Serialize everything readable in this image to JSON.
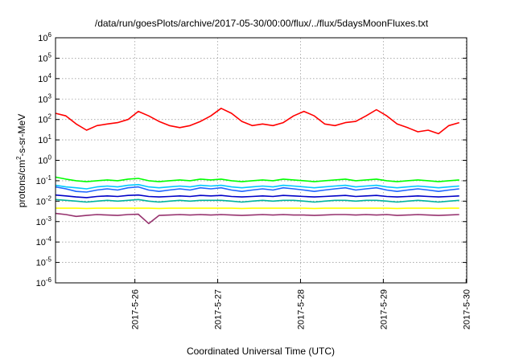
{
  "chart_data": {
    "type": "line",
    "title": "/data/run/goesPlots/archive/2017-05-30/00:00/flux/../flux/5daysMoonFluxes.txt",
    "xlabel": "Coordinated Universal Time (UTC)",
    "ylabel": "protons/cm2-s-sr-MeV",
    "ylabel_parts": {
      "before": "protons/cm",
      "sup": "2",
      "after": "-s-sr-MeV"
    },
    "y_scale": "log",
    "ylim": [
      1e-06,
      1000000.0
    ],
    "y_ticks": [
      {
        "base": "10",
        "exp": "-6"
      },
      {
        "base": "10",
        "exp": "-5"
      },
      {
        "base": "10",
        "exp": "-4"
      },
      {
        "base": "10",
        "exp": "-3"
      },
      {
        "base": "10",
        "exp": "-2"
      },
      {
        "base": "10",
        "exp": "-1"
      },
      {
        "base": "10",
        "exp": "0"
      },
      {
        "base": "10",
        "exp": "1"
      },
      {
        "base": "10",
        "exp": "2"
      },
      {
        "base": "10",
        "exp": "3"
      },
      {
        "base": "10",
        "exp": "4"
      },
      {
        "base": "10",
        "exp": "5"
      },
      {
        "base": "10",
        "exp": "6"
      }
    ],
    "xlim": [
      "2017-05-25 01:00",
      "2017-05-30 00:10"
    ],
    "x_ticks": [
      "2017-5-26",
      "2017-5-27",
      "2017-5-28",
      "2017-5-29",
      "2017-5-30"
    ],
    "grid": true,
    "legend": "none",
    "x": [
      "2017-05-25 01:00",
      "2017-05-25 04:00",
      "2017-05-25 07:00",
      "2017-05-25 10:00",
      "2017-05-25 13:00",
      "2017-05-25 16:00",
      "2017-05-25 19:00",
      "2017-05-25 22:00",
      "2017-05-26 01:00",
      "2017-05-26 04:00",
      "2017-05-26 07:00",
      "2017-05-26 10:00",
      "2017-05-26 13:00",
      "2017-05-26 16:00",
      "2017-05-26 19:00",
      "2017-05-26 22:00",
      "2017-05-27 01:00",
      "2017-05-27 04:00",
      "2017-05-27 07:00",
      "2017-05-27 10:00",
      "2017-05-27 13:00",
      "2017-05-27 16:00",
      "2017-05-27 19:00",
      "2017-05-27 22:00",
      "2017-05-28 01:00",
      "2017-05-28 04:00",
      "2017-05-28 07:00",
      "2017-05-28 10:00",
      "2017-05-28 13:00",
      "2017-05-28 16:00",
      "2017-05-28 19:00",
      "2017-05-28 22:00",
      "2017-05-29 01:00",
      "2017-05-29 04:00",
      "2017-05-29 07:00",
      "2017-05-29 10:00",
      "2017-05-29 13:00",
      "2017-05-29 16:00",
      "2017-05-29 19:00",
      "2017-05-29 22:00"
    ],
    "series": [
      {
        "color": "#ff0000",
        "values": [
          200,
          150,
          60,
          30,
          50,
          60,
          70,
          100,
          250,
          150,
          80,
          50,
          40,
          50,
          80,
          150,
          350,
          200,
          80,
          50,
          60,
          50,
          70,
          150,
          250,
          150,
          60,
          50,
          70,
          80,
          150,
          300,
          150,
          60,
          40,
          25,
          30,
          20,
          50,
          70
        ]
      },
      {
        "color": "#00ff00",
        "values": [
          0.15,
          0.12,
          0.1,
          0.09,
          0.1,
          0.11,
          0.1,
          0.12,
          0.13,
          0.1,
          0.09,
          0.1,
          0.11,
          0.1,
          0.12,
          0.11,
          0.12,
          0.1,
          0.09,
          0.1,
          0.11,
          0.1,
          0.12,
          0.11,
          0.1,
          0.09,
          0.1,
          0.11,
          0.12,
          0.1,
          0.11,
          0.12,
          0.1,
          0.09,
          0.1,
          0.11,
          0.1,
          0.09,
          0.1,
          0.11
        ]
      },
      {
        "color": "#00c8ff",
        "values": [
          0.06,
          0.05,
          0.045,
          0.04,
          0.05,
          0.055,
          0.05,
          0.06,
          0.065,
          0.05,
          0.045,
          0.05,
          0.055,
          0.05,
          0.06,
          0.055,
          0.06,
          0.05,
          0.045,
          0.05,
          0.055,
          0.05,
          0.06,
          0.055,
          0.05,
          0.045,
          0.05,
          0.055,
          0.06,
          0.05,
          0.055,
          0.06,
          0.05,
          0.045,
          0.05,
          0.055,
          0.05,
          0.045,
          0.05,
          0.055
        ]
      },
      {
        "color": "#1e64ff",
        "values": [
          0.05,
          0.04,
          0.03,
          0.028,
          0.035,
          0.04,
          0.035,
          0.045,
          0.05,
          0.035,
          0.03,
          0.035,
          0.04,
          0.035,
          0.045,
          0.04,
          0.045,
          0.035,
          0.03,
          0.035,
          0.04,
          0.035,
          0.045,
          0.04,
          0.035,
          0.03,
          0.035,
          0.04,
          0.045,
          0.035,
          0.04,
          0.045,
          0.035,
          0.03,
          0.035,
          0.04,
          0.035,
          0.03,
          0.035,
          0.04
        ]
      },
      {
        "color": "#0000c8",
        "values": [
          0.02,
          0.018,
          0.016,
          0.015,
          0.017,
          0.018,
          0.017,
          0.019,
          0.02,
          0.017,
          0.016,
          0.017,
          0.018,
          0.017,
          0.019,
          0.018,
          0.019,
          0.017,
          0.016,
          0.017,
          0.018,
          0.017,
          0.019,
          0.018,
          0.017,
          0.016,
          0.017,
          0.018,
          0.019,
          0.017,
          0.018,
          0.019,
          0.017,
          0.016,
          0.017,
          0.018,
          0.017,
          0.016,
          0.017,
          0.018
        ]
      },
      {
        "color": "#00b4a0",
        "values": [
          0.012,
          0.011,
          0.01,
          0.009,
          0.01,
          0.011,
          0.01,
          0.011,
          0.012,
          0.01,
          0.009,
          0.01,
          0.011,
          0.01,
          0.011,
          0.011,
          0.011,
          0.01,
          0.009,
          0.01,
          0.011,
          0.01,
          0.011,
          0.011,
          0.01,
          0.009,
          0.01,
          0.011,
          0.011,
          0.01,
          0.011,
          0.011,
          0.01,
          0.009,
          0.01,
          0.011,
          0.01,
          0.009,
          0.01,
          0.011
        ]
      },
      {
        "color": "#ffff00",
        "values": [
          0.0045,
          0.0045,
          0.0045,
          0.0044,
          0.0045,
          0.0045,
          0.0045,
          0.0045,
          0.0045,
          0.0045,
          0.0044,
          0.0045,
          0.0045,
          0.0045,
          0.0045,
          0.0045,
          0.0045,
          0.0045,
          0.0044,
          0.0045,
          0.0045,
          0.0045,
          0.0045,
          0.0045,
          0.0045,
          0.0044,
          0.0045,
          0.0045,
          0.0045,
          0.0045,
          0.0045,
          0.0045,
          0.0045,
          0.0044,
          0.0045,
          0.0045,
          0.0045,
          0.0044,
          0.0045,
          0.0045
        ]
      },
      {
        "color": "#96326e",
        "values": [
          0.0025,
          0.0022,
          0.0018,
          0.002,
          0.0022,
          0.0021,
          0.002,
          0.0022,
          0.0023,
          0.0008,
          0.002,
          0.0021,
          0.0022,
          0.0021,
          0.0022,
          0.0021,
          0.0022,
          0.0021,
          0.002,
          0.0021,
          0.0022,
          0.0021,
          0.0022,
          0.0021,
          0.0021,
          0.002,
          0.0021,
          0.0022,
          0.0022,
          0.0021,
          0.0022,
          0.0021,
          0.0022,
          0.002,
          0.0021,
          0.0022,
          0.0021,
          0.002,
          0.0021,
          0.0022
        ]
      }
    ]
  }
}
